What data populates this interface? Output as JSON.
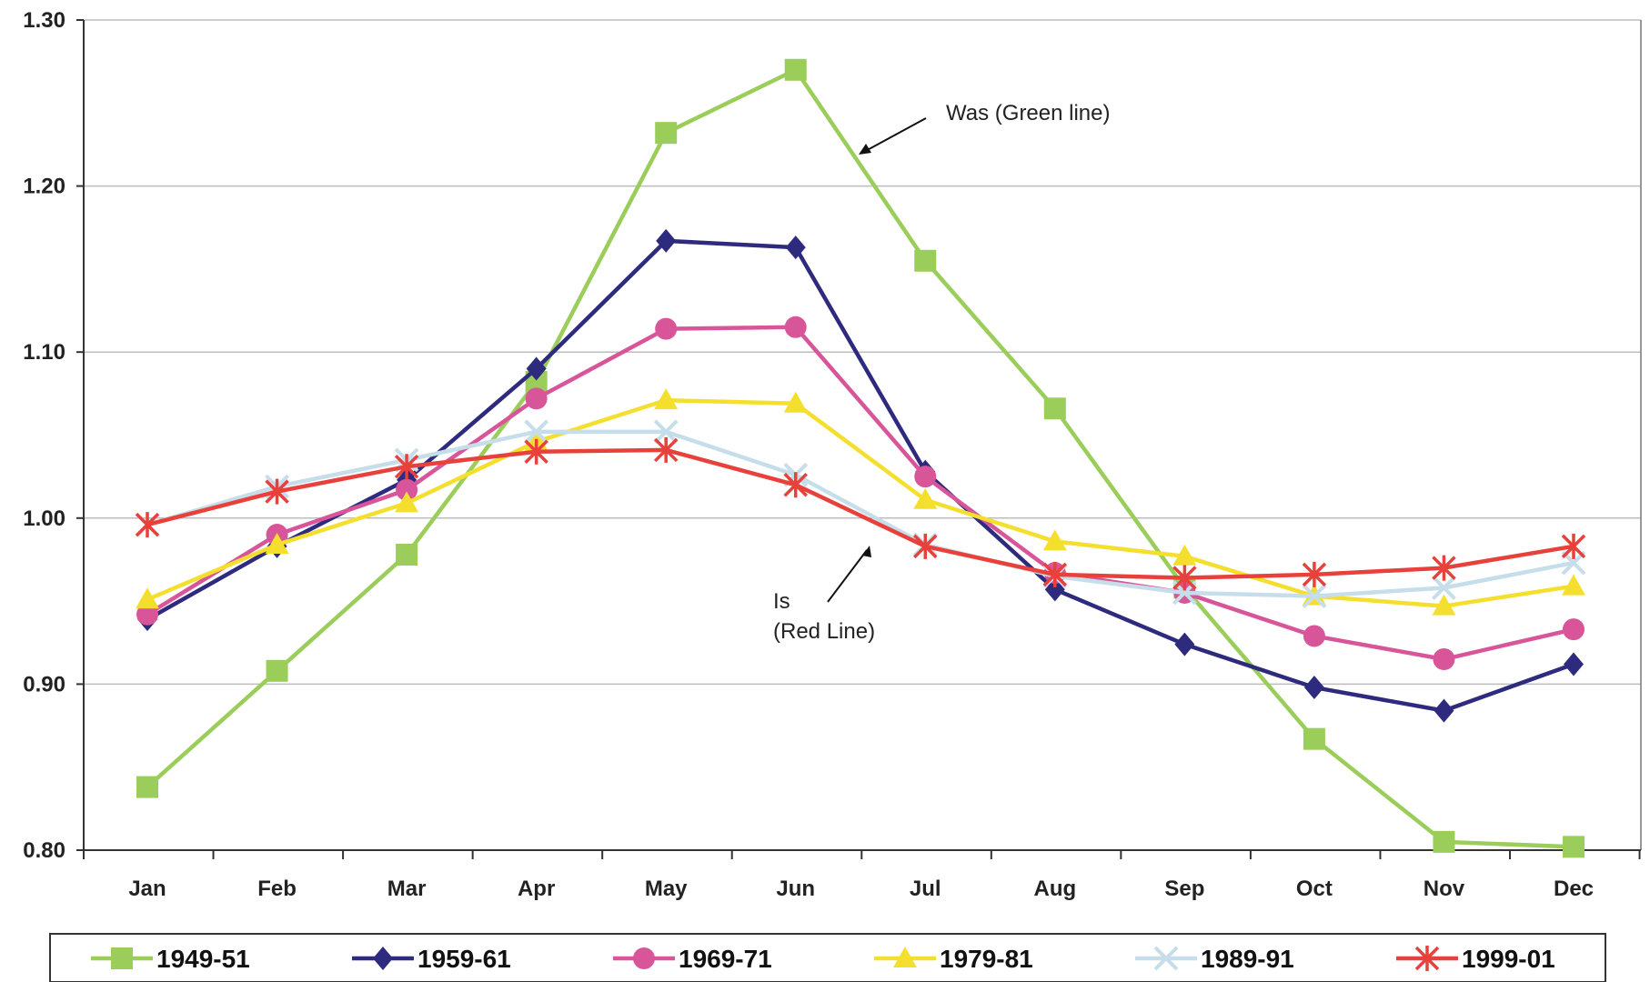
{
  "chart_data": {
    "type": "line",
    "categories": [
      "Jan",
      "Feb",
      "Mar",
      "Apr",
      "May",
      "Jun",
      "Jul",
      "Aug",
      "Sep",
      "Oct",
      "Nov",
      "Dec"
    ],
    "ylim": [
      0.8,
      1.3
    ],
    "yticks": [
      "0.80",
      "0.90",
      "1.00",
      "1.10",
      "1.20",
      "1.30"
    ],
    "grid": true,
    "legend_position": "bottom",
    "series": [
      {
        "name": "1949-51",
        "color": "#9ACD5A",
        "marker": "square",
        "values": [
          0.838,
          0.908,
          0.978,
          1.082,
          1.232,
          1.27,
          1.155,
          1.066,
          0.958,
          0.867,
          0.805,
          0.802
        ]
      },
      {
        "name": "1959-61",
        "color": "#2E2A7E",
        "marker": "diamond",
        "values": [
          0.939,
          0.983,
          1.023,
          1.09,
          1.167,
          1.163,
          1.028,
          0.957,
          0.924,
          0.898,
          0.884,
          0.912
        ]
      },
      {
        "name": "1969-71",
        "color": "#D9559A",
        "marker": "circle",
        "values": [
          0.942,
          0.99,
          1.017,
          1.072,
          1.114,
          1.115,
          1.025,
          0.967,
          0.955,
          0.929,
          0.915,
          0.933
        ]
      },
      {
        "name": "1979-81",
        "color": "#F5DF2E",
        "marker": "triangle",
        "values": [
          0.951,
          0.984,
          1.009,
          1.046,
          1.071,
          1.069,
          1.011,
          0.986,
          0.977,
          0.953,
          0.947,
          0.959
        ]
      },
      {
        "name": "1989-91",
        "color": "#C6DDEA",
        "marker": "x",
        "values": [
          0.996,
          1.019,
          1.035,
          1.052,
          1.052,
          1.026,
          0.984,
          0.965,
          0.955,
          0.953,
          0.958,
          0.973
        ]
      },
      {
        "name": "1999-01",
        "color": "#E8413C",
        "marker": "star",
        "values": [
          0.996,
          1.016,
          1.031,
          1.04,
          1.041,
          1.02,
          0.983,
          0.966,
          0.964,
          0.966,
          0.97,
          0.983
        ]
      }
    ],
    "annotations": [
      {
        "lines": [
          "Was (Green line)"
        ]
      },
      {
        "lines": [
          "Is",
          "(Red Line)"
        ]
      }
    ]
  }
}
